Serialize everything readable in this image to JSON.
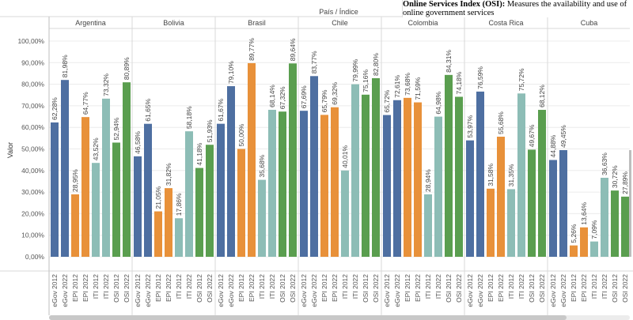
{
  "tooltip": {
    "bold": "Online Services Index (OSI):",
    "text": " Measures the availability and use of online government services"
  },
  "chart_data": {
    "type": "bar",
    "column_header": "País / Índice",
    "ylabel": "Valor",
    "ylim": [
      0,
      100
    ],
    "yticks": [
      "0,00%",
      "10,00%",
      "20,00%",
      "30,00%",
      "40,00%",
      "50,00%",
      "60,00%",
      "70,00%",
      "80,00%",
      "90,00%",
      "100,00%"
    ],
    "grid": true,
    "categories": [
      "eGov 2012",
      "eGov 2022",
      "EPI 2012",
      "EPI 2022",
      "ITI 2012",
      "ITI 2022",
      "OSI 2012",
      "OSI 2022"
    ],
    "colors": {
      "eGov": "#4e6fa1",
      "EPI": "#e8913a",
      "ITI": "#8dbdb6",
      "OSI": "#5a9e4f"
    },
    "panels": [
      {
        "name": "Argentina",
        "values": [
          62.28,
          81.98,
          28.95,
          64.77,
          43.52,
          73.32,
          52.94,
          80.89
        ],
        "labels": [
          "62,28%",
          "81,98%",
          "28,95%",
          "64,77%",
          "43,52%",
          "73,32%",
          "52,94%",
          "80,89%"
        ]
      },
      {
        "name": "Bolivia",
        "values": [
          46.58,
          61.65,
          21.05,
          31.82,
          17.86,
          58.18,
          41.18,
          51.93
        ],
        "labels": [
          "46,58%",
          "61,65%",
          "21,05%",
          "31,82%",
          "17,86%",
          "58,18%",
          "41,18%",
          "51,93%"
        ]
      },
      {
        "name": "Brasil",
        "values": [
          61.67,
          79.1,
          50.0,
          89.77,
          35.68,
          68.14,
          67.32,
          89.64
        ],
        "labels": [
          "61,67%",
          "79,10%",
          "50,00%",
          "89,77%",
          "35,68%",
          "68,14%",
          "67,32%",
          "89,64%"
        ]
      },
      {
        "name": "Chile",
        "values": [
          67.69,
          83.77,
          65.79,
          69.32,
          40.01,
          79.99,
          75.16,
          82.8
        ],
        "labels": [
          "67,69%",
          "83,77%",
          "65,79%",
          "69,32%",
          "40,01%",
          "79,99%",
          "75,16%",
          "82,80%"
        ]
      },
      {
        "name": "Colombia",
        "values": [
          65.72,
          72.61,
          73.68,
          71.59,
          28.94,
          64.98,
          84.31,
          74.18
        ],
        "labels": [
          "65,72%",
          "72,61%",
          "73,68%",
          "71,59%",
          "28,94%",
          "64,98%",
          "84,31%",
          "74,18%"
        ]
      },
      {
        "name": "Costa Rica",
        "values": [
          53.97,
          76.59,
          31.58,
          55.68,
          31.35,
          75.72,
          49.67,
          68.12
        ],
        "labels": [
          "53,97%",
          "76,59%",
          "31,58%",
          "55,68%",
          "31,35%",
          "75,72%",
          "49,67%",
          "68,12%"
        ]
      },
      {
        "name": "Cuba",
        "values": [
          44.88,
          49.45,
          5.26,
          13.64,
          7.09,
          36.63,
          30.72,
          27.89
        ],
        "labels": [
          "44,88%",
          "49,45%",
          "5,26%",
          "13,64%",
          "7,09%",
          "36,63%",
          "30,72%",
          "27,89%"
        ]
      }
    ]
  }
}
